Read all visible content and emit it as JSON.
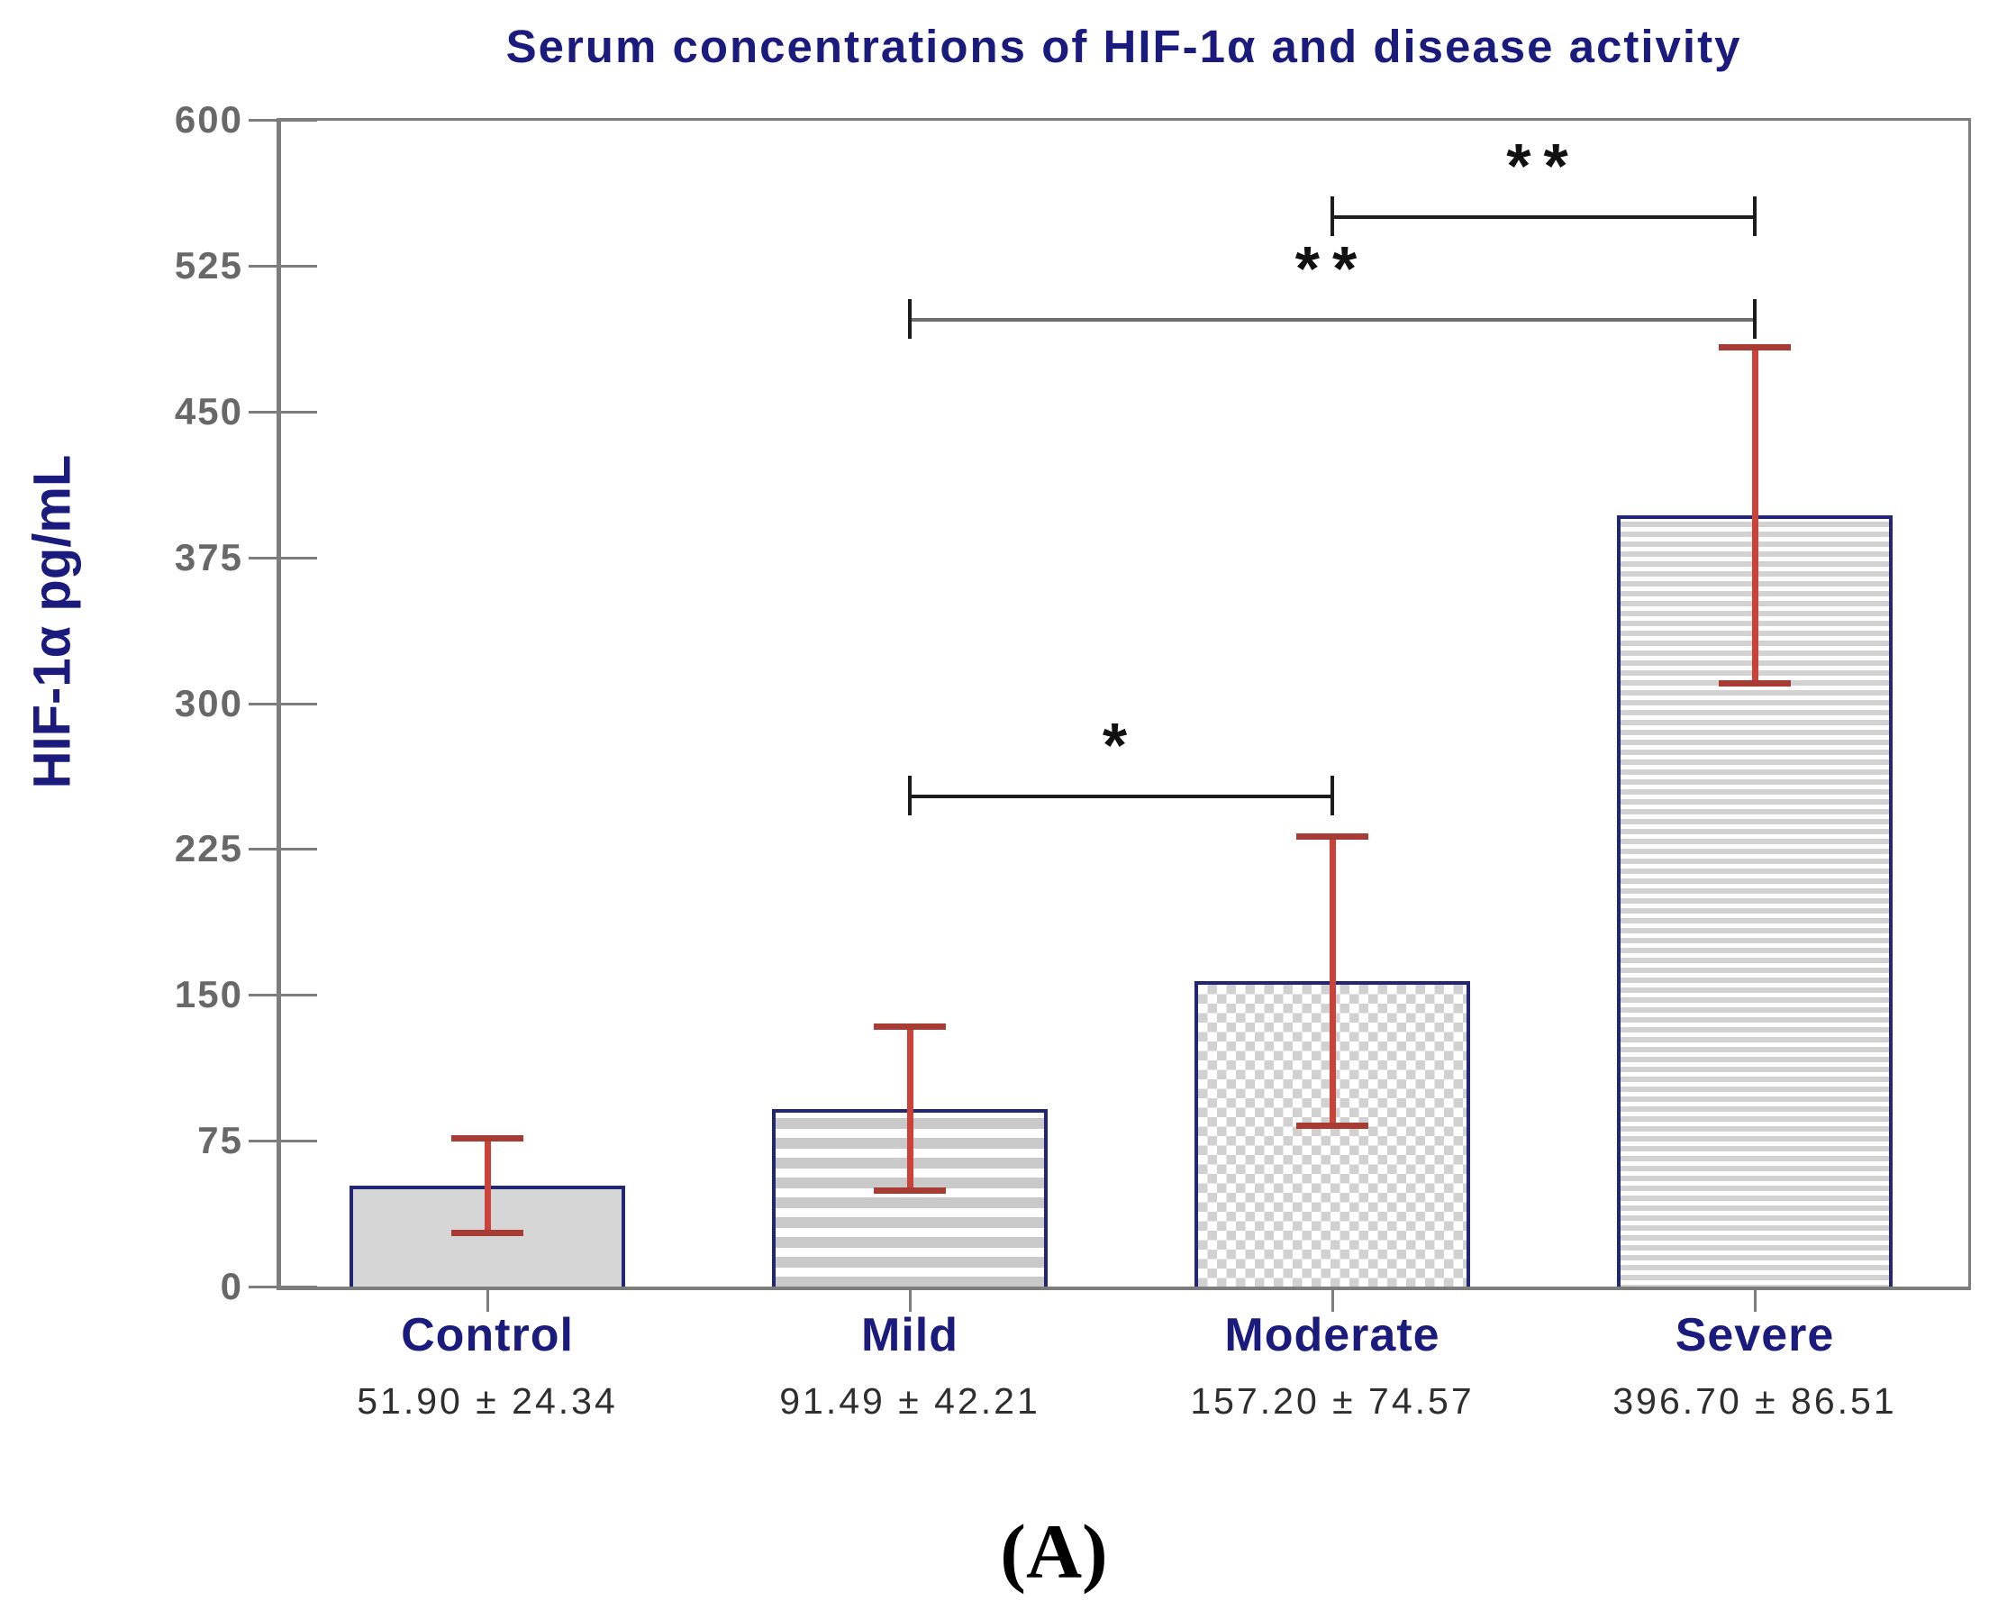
{
  "figure": {
    "title": "Serum concentrations of HIF-1α and disease activity",
    "y_axis_label": "HIF-1α pg/mL",
    "caption": "(A)"
  },
  "chart_data": {
    "type": "bar",
    "title": "Serum concentrations of HIF-1α and disease activity",
    "xlabel": "",
    "ylabel": "HIF-1α pg/mL",
    "ylim": [
      0,
      600
    ],
    "yticks": [
      "0",
      "75",
      "150",
      "225",
      "300",
      "375",
      "450",
      "525",
      "600"
    ],
    "grid": "off",
    "legend": "none",
    "categories": [
      "Control",
      "Mild",
      "Moderate",
      "Severe"
    ],
    "values": [
      51.9,
      91.49,
      157.2,
      396.7
    ],
    "errors": [
      24.34,
      42.21,
      74.57,
      86.51
    ],
    "value_labels": [
      "51.90 ± 24.34",
      "91.49 ± 42.21",
      "157.20 ± 74.57",
      "396.70 ± 86.51"
    ],
    "bar_patterns": [
      "solid",
      "hstripe-wide",
      "checker",
      "hstripe-fine"
    ],
    "significance_brackets": [
      {
        "between": [
          "Mild",
          "Moderate"
        ],
        "label": "*",
        "y": 252,
        "line_color": "#1c1c1c"
      },
      {
        "between": [
          "Mild",
          "Severe"
        ],
        "label": "**",
        "y": 497,
        "line_color": "#6f6f6f"
      },
      {
        "between": [
          "Moderate",
          "Severe"
        ],
        "label": "**",
        "y": 550,
        "line_color": "#1c1c1c"
      }
    ],
    "colors": {
      "title_text": "#1b1b7e",
      "category_text": "#1b1b7e",
      "tick_text": "#686868",
      "value_text": "#2e2e2e",
      "axis_line": "#7d7d7d",
      "bar_border": "#232675",
      "bar_fill_gray": "#d1d1d1",
      "error_bar_line": "#cb4238",
      "error_bar_cap": "#a63c33"
    }
  }
}
